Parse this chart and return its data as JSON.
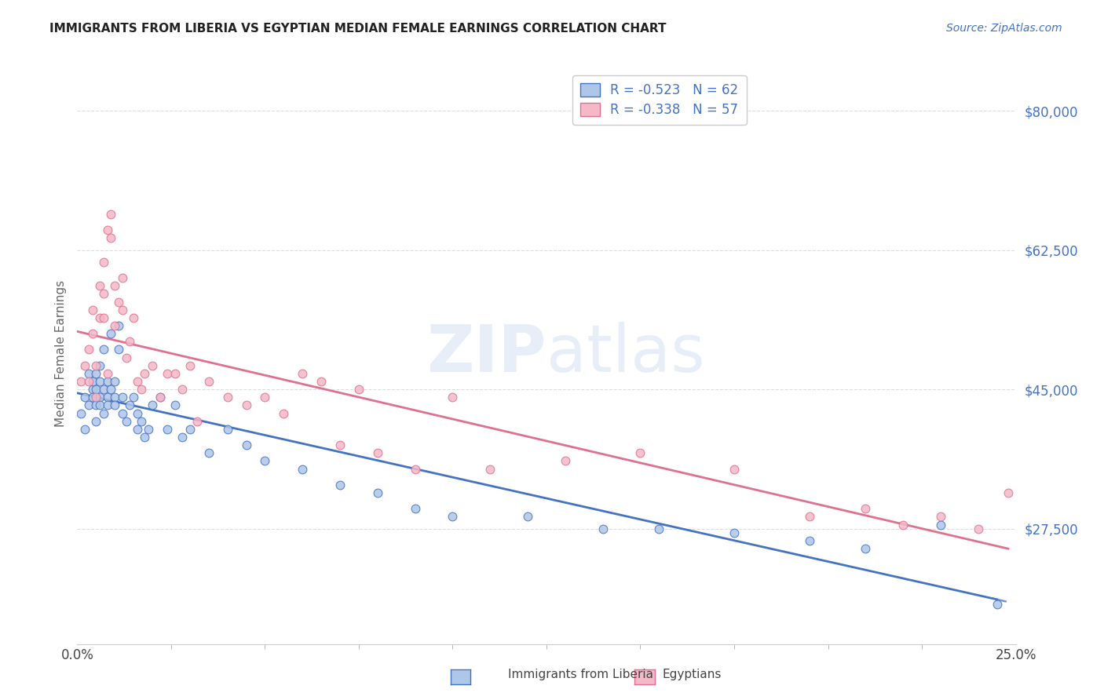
{
  "title": "IMMIGRANTS FROM LIBERIA VS EGYPTIAN MEDIAN FEMALE EARNINGS CORRELATION CHART",
  "source": "Source: ZipAtlas.com",
  "ylabel": "Median Female Earnings",
  "ytick_values": [
    27500,
    45000,
    62500,
    80000
  ],
  "ylim": [
    13000,
    86000
  ],
  "xlim": [
    0.0,
    0.25
  ],
  "liberia_color": "#aec6e8",
  "egypt_color": "#f4b8c8",
  "liberia_line_color": "#4472c4",
  "egypt_line_color": "#e07090",
  "background_color": "#ffffff",
  "watermark": "ZIPatlas",
  "liberia_x": [
    0.001,
    0.002,
    0.002,
    0.003,
    0.003,
    0.004,
    0.004,
    0.004,
    0.005,
    0.005,
    0.005,
    0.005,
    0.006,
    0.006,
    0.006,
    0.006,
    0.007,
    0.007,
    0.007,
    0.008,
    0.008,
    0.008,
    0.009,
    0.009,
    0.01,
    0.01,
    0.01,
    0.011,
    0.011,
    0.012,
    0.012,
    0.013,
    0.014,
    0.015,
    0.016,
    0.016,
    0.017,
    0.018,
    0.019,
    0.02,
    0.022,
    0.024,
    0.026,
    0.028,
    0.03,
    0.035,
    0.04,
    0.045,
    0.05,
    0.06,
    0.07,
    0.08,
    0.09,
    0.1,
    0.12,
    0.14,
    0.155,
    0.175,
    0.195,
    0.21,
    0.23,
    0.245
  ],
  "liberia_y": [
    42000,
    40000,
    44000,
    43000,
    47000,
    45000,
    46000,
    44000,
    45000,
    47000,
    43000,
    41000,
    44000,
    46000,
    43000,
    48000,
    45000,
    42000,
    50000,
    44000,
    46000,
    43000,
    45000,
    52000,
    44000,
    46000,
    43000,
    50000,
    53000,
    44000,
    42000,
    41000,
    43000,
    44000,
    42000,
    40000,
    41000,
    39000,
    40000,
    43000,
    44000,
    40000,
    43000,
    39000,
    40000,
    37000,
    40000,
    38000,
    36000,
    35000,
    33000,
    32000,
    30000,
    29000,
    29000,
    27500,
    27500,
    27000,
    26000,
    25000,
    28000,
    18000
  ],
  "egypt_x": [
    0.001,
    0.002,
    0.003,
    0.003,
    0.004,
    0.004,
    0.005,
    0.005,
    0.006,
    0.006,
    0.007,
    0.007,
    0.007,
    0.008,
    0.008,
    0.009,
    0.009,
    0.01,
    0.01,
    0.011,
    0.012,
    0.012,
    0.013,
    0.014,
    0.015,
    0.016,
    0.017,
    0.018,
    0.02,
    0.022,
    0.024,
    0.026,
    0.028,
    0.03,
    0.032,
    0.035,
    0.04,
    0.045,
    0.05,
    0.055,
    0.06,
    0.065,
    0.07,
    0.075,
    0.08,
    0.09,
    0.1,
    0.11,
    0.13,
    0.15,
    0.175,
    0.195,
    0.21,
    0.22,
    0.23,
    0.24,
    0.248
  ],
  "egypt_y": [
    46000,
    48000,
    50000,
    46000,
    55000,
    52000,
    48000,
    44000,
    58000,
    54000,
    57000,
    61000,
    54000,
    65000,
    47000,
    64000,
    67000,
    58000,
    53000,
    56000,
    55000,
    59000,
    49000,
    51000,
    54000,
    46000,
    45000,
    47000,
    48000,
    44000,
    47000,
    47000,
    45000,
    48000,
    41000,
    46000,
    44000,
    43000,
    44000,
    42000,
    47000,
    46000,
    38000,
    45000,
    37000,
    35000,
    44000,
    35000,
    36000,
    37000,
    35000,
    29000,
    30000,
    28000,
    29000,
    27500,
    32000
  ]
}
